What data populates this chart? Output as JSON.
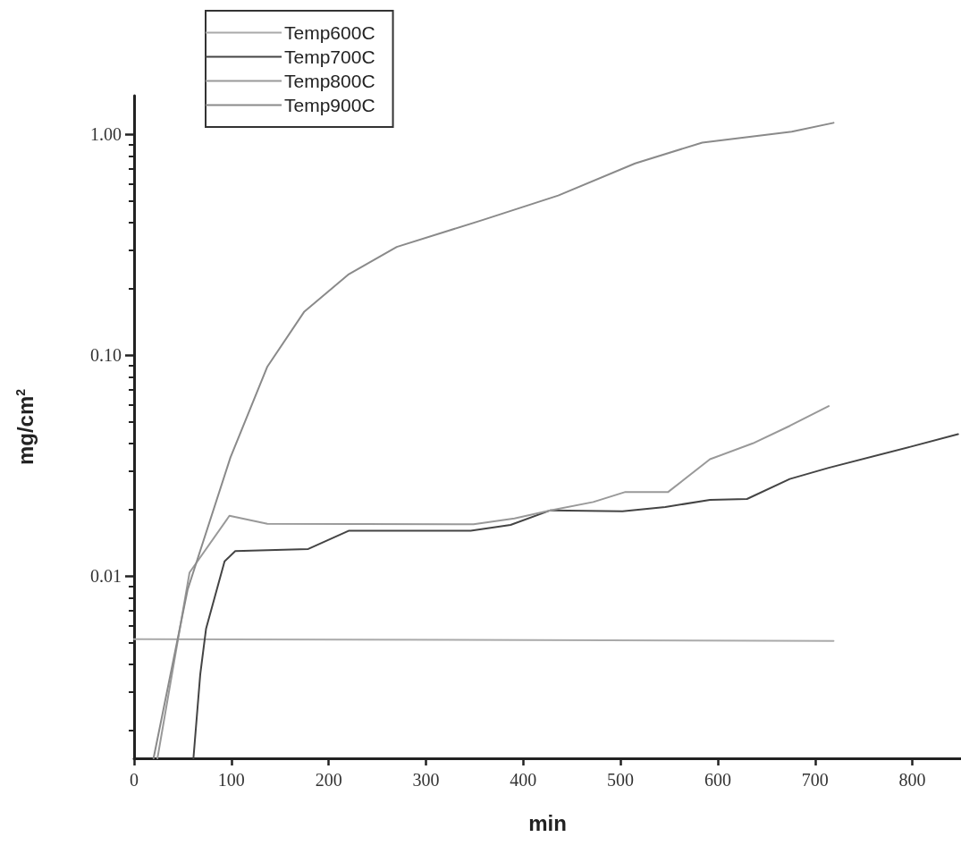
{
  "chart_data": {
    "type": "line",
    "xlabel": "min",
    "ylabel": "mg/cm$^{2}$",
    "log": "y",
    "xlim": [
      0,
      850
    ],
    "xticks": [
      0,
      100,
      200,
      300,
      400,
      500,
      600,
      700,
      800
    ],
    "ylim": [
      0.0015,
      1.5
    ],
    "yticks": [
      {
        "value": 0.01,
        "label": "0.01"
      },
      {
        "value": 0.1,
        "label": "0.10"
      },
      {
        "value": 1,
        "label": "1.00"
      }
    ],
    "legend": "top left",
    "grid": false,
    "marker": "none",
    "line_style": "solid",
    "series": [
      {
        "name": "Temp600C",
        "color": "#aaaaaa",
        "x": [
          0,
          719
        ],
        "values": [
          0.0052,
          0.0051
        ]
      },
      {
        "name": "Temp700C",
        "color": "#444444",
        "x": [
          61,
          68,
          74,
          93,
          104,
          179,
          221,
          346,
          387,
          428,
          502,
          546,
          592,
          630,
          674,
          714,
          798,
          847
        ],
        "values": [
          0.0015,
          0.0036,
          0.0058,
          0.0117,
          0.013,
          0.0133,
          0.0161,
          0.0161,
          0.0171,
          0.0199,
          0.0197,
          0.0206,
          0.0222,
          0.0224,
          0.0276,
          0.031,
          0.0386,
          0.044
        ]
      },
      {
        "name": "Temp800C",
        "color": "#999999",
        "x": [
          24,
          57,
          98,
          137,
          349,
          391,
          428,
          472,
          505,
          549,
          592,
          636,
          674,
          714
        ],
        "values": [
          0.0015,
          0.0104,
          0.0188,
          0.0173,
          0.0172,
          0.0183,
          0.0199,
          0.0217,
          0.0241,
          0.0241,
          0.0339,
          0.04,
          0.048,
          0.059
        ]
      },
      {
        "name": "Temp900C",
        "color": "#8a8a8a",
        "x": [
          20,
          55,
          99,
          137,
          175,
          220,
          270,
          358,
          436,
          515,
          584,
          676,
          719
        ],
        "values": [
          0.0015,
          0.0087,
          0.0345,
          0.089,
          0.158,
          0.232,
          0.31,
          0.41,
          0.53,
          0.74,
          0.92,
          1.03,
          1.13
        ]
      }
    ]
  }
}
